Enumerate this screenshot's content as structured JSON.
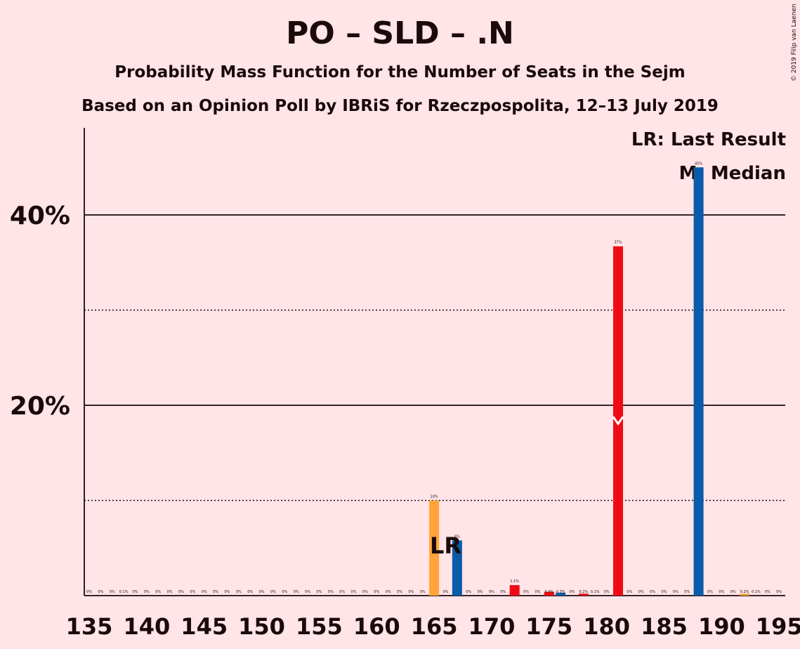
{
  "title": "PO – SLD – .N",
  "subtitle": "Probability Mass Function for the Number of Seats in the Sejm",
  "subtitle2": "Based on an Opinion Poll by IBRiS for Rzeczpospolita, 12–13 July 2019",
  "copyright": "© 2019 Filip van Laenen",
  "legend": {
    "last_result": "LR: Last Result",
    "median": "M: Median"
  },
  "colors": {
    "background": "#FFE4E8",
    "blue": "#0A5BA8",
    "red": "#F00A14",
    "orange": "#FFA43A"
  },
  "chart_data": {
    "type": "bar",
    "xlim": [
      135,
      195
    ],
    "ylim": [
      0,
      49
    ],
    "x_ticks": [
      135,
      140,
      145,
      150,
      155,
      160,
      165,
      170,
      175,
      180,
      185,
      190,
      195
    ],
    "y_ticks_major": [
      {
        "value": 20,
        "label": "20%"
      },
      {
        "value": 40,
        "label": "40%"
      }
    ],
    "y_ticks_minor": [
      10,
      30
    ],
    "last_result": {
      "seat": 166,
      "label": "LR"
    },
    "median": {
      "seat": 181,
      "label": "M"
    },
    "bars": [
      {
        "seat": 135,
        "value": 0,
        "label": "0%"
      },
      {
        "seat": 136,
        "value": 0,
        "label": "0%"
      },
      {
        "seat": 137,
        "value": 0,
        "label": "0%"
      },
      {
        "seat": 138,
        "value": 0.1,
        "label": "0.1%"
      },
      {
        "seat": 139,
        "value": 0,
        "label": "0%"
      },
      {
        "seat": 140,
        "value": 0,
        "label": "0%"
      },
      {
        "seat": 141,
        "value": 0,
        "label": "0%"
      },
      {
        "seat": 142,
        "value": 0,
        "label": "0%"
      },
      {
        "seat": 143,
        "value": 0,
        "label": "0%"
      },
      {
        "seat": 144,
        "value": 0,
        "label": "0%"
      },
      {
        "seat": 145,
        "value": 0,
        "label": "0%"
      },
      {
        "seat": 146,
        "value": 0,
        "label": "0%"
      },
      {
        "seat": 147,
        "value": 0,
        "label": "0%"
      },
      {
        "seat": 148,
        "value": 0,
        "label": "0%"
      },
      {
        "seat": 149,
        "value": 0,
        "label": "0%"
      },
      {
        "seat": 150,
        "value": 0,
        "label": "0%"
      },
      {
        "seat": 151,
        "value": 0,
        "label": "0%"
      },
      {
        "seat": 152,
        "value": 0,
        "label": "0%"
      },
      {
        "seat": 153,
        "value": 0,
        "label": "0%"
      },
      {
        "seat": 154,
        "value": 0,
        "label": "0%"
      },
      {
        "seat": 155,
        "value": 0,
        "label": "0%"
      },
      {
        "seat": 156,
        "value": 0,
        "label": "0%"
      },
      {
        "seat": 157,
        "value": 0,
        "label": "0%"
      },
      {
        "seat": 158,
        "value": 0,
        "label": "0%"
      },
      {
        "seat": 159,
        "value": 0,
        "label": "0%"
      },
      {
        "seat": 160,
        "value": 0,
        "label": "0%"
      },
      {
        "seat": 161,
        "value": 0,
        "label": "0%"
      },
      {
        "seat": 162,
        "value": 0,
        "label": "0%"
      },
      {
        "seat": 163,
        "value": 0,
        "label": "0%"
      },
      {
        "seat": 164,
        "value": 0,
        "label": "0%"
      },
      {
        "seat": 165,
        "value": 10,
        "label": "10%",
        "color": "orange"
      },
      {
        "seat": 166,
        "value": 0,
        "label": "0%"
      },
      {
        "seat": 167,
        "value": 5.8,
        "label": "6%",
        "color": "blue"
      },
      {
        "seat": 168,
        "value": 0,
        "label": "0%"
      },
      {
        "seat": 169,
        "value": 0,
        "label": "0%"
      },
      {
        "seat": 170,
        "value": 0,
        "label": "0%"
      },
      {
        "seat": 171,
        "value": 0,
        "label": "0%"
      },
      {
        "seat": 172,
        "value": 1.1,
        "label": "1.1%",
        "color": "red"
      },
      {
        "seat": 173,
        "value": 0,
        "label": "0%"
      },
      {
        "seat": 174,
        "value": 0,
        "label": "0%"
      },
      {
        "seat": 175,
        "value": 0.4,
        "label": "0.4%",
        "color": "red"
      },
      {
        "seat": 176,
        "value": 0.3,
        "label": "0.3%",
        "color": "blue"
      },
      {
        "seat": 177,
        "value": 0,
        "label": "0%"
      },
      {
        "seat": 178,
        "value": 0.2,
        "label": "0.2%",
        "color": "red"
      },
      {
        "seat": 179,
        "value": 0.1,
        "label": "0.1%"
      },
      {
        "seat": 180,
        "value": 0,
        "label": "0%"
      },
      {
        "seat": 181,
        "value": 36.7,
        "label": "37%",
        "color": "red"
      },
      {
        "seat": 182,
        "value": 0,
        "label": "0%"
      },
      {
        "seat": 183,
        "value": 0,
        "label": "0%"
      },
      {
        "seat": 184,
        "value": 0,
        "label": "0%"
      },
      {
        "seat": 185,
        "value": 0,
        "label": "0%"
      },
      {
        "seat": 186,
        "value": 0,
        "label": "0%"
      },
      {
        "seat": 187,
        "value": 0,
        "label": "0%"
      },
      {
        "seat": 188,
        "value": 45,
        "label": "45%",
        "color": "blue"
      },
      {
        "seat": 189,
        "value": 0,
        "label": "0%"
      },
      {
        "seat": 190,
        "value": 0,
        "label": "0%"
      },
      {
        "seat": 191,
        "value": 0,
        "label": "0%"
      },
      {
        "seat": 192,
        "value": 0.2,
        "label": "0.2%",
        "color": "orange"
      },
      {
        "seat": 193,
        "value": 0.1,
        "label": "0.1%"
      },
      {
        "seat": 194,
        "value": 0,
        "label": "0%"
      },
      {
        "seat": 195,
        "value": 0,
        "label": "0%"
      }
    ]
  }
}
